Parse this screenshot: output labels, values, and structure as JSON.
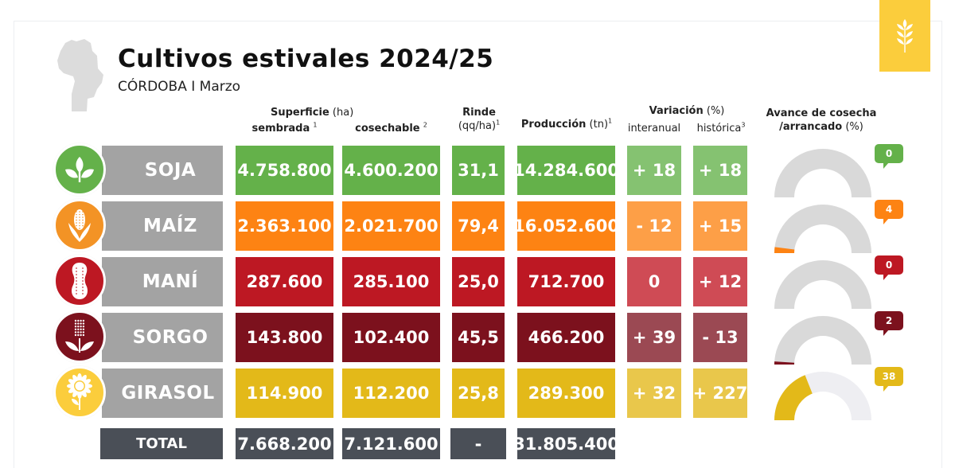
{
  "header": {
    "title": "Cultivos estivales 2024/25",
    "subtitle": "CÓRDOBA I Marzo",
    "badge_icon": "wheat-icon",
    "map_icon": "cordoba-map-icon"
  },
  "columns": {
    "superficie": "Superficie",
    "superficie_unit": "(ha)",
    "sembrada": "sembrada",
    "sembrada_note": "1",
    "cosechable": "cosechable",
    "cosechable_note": "2",
    "rinde": "Rinde",
    "rinde_unit": "(qq/ha)",
    "rinde_note": "1",
    "produccion": "Producción",
    "produccion_unit": "(tn)",
    "produccion_note": "1",
    "variacion": "Variación",
    "variacion_unit": "(%)",
    "interanual": "interanual",
    "historica": "histórica",
    "historica_note": "3",
    "avance_line1": "Avance de cosecha",
    "avance_line2": "/arrancado",
    "avance_unit": "(%)"
  },
  "crops": [
    {
      "name": "SOJA",
      "icon": "soybean-plant-icon",
      "sembrada": "4.758.800",
      "cosechable": "4.600.200",
      "rinde": "31,1",
      "produccion": "14.284.600",
      "interanual": "+ 18",
      "historica": "+ 18",
      "avance": "0",
      "avance_pct": 0,
      "color": "#64b14a",
      "var_color": "#85c271",
      "icon_color": "#64b14a"
    },
    {
      "name": "MAÍZ",
      "icon": "corn-icon",
      "sembrada": "2.363.100",
      "cosechable": "2.021.700",
      "rinde": "79,4",
      "produccion": "16.052.600",
      "interanual": "- 12",
      "historica": "+ 15",
      "avance": "4",
      "avance_pct": 4,
      "color": "#fd8313",
      "var_color": "#fd9f47",
      "icon_color": "#f39325"
    },
    {
      "name": "MANÍ",
      "icon": "peanut-icon",
      "sembrada": "287.600",
      "cosechable": "285.100",
      "rinde": "25,0",
      "produccion": "712.700",
      "interanual": "0",
      "historica": "+ 12",
      "avance": "0",
      "avance_pct": 0,
      "color": "#bd1823",
      "var_color": "#cf4b55",
      "icon_color": "#bd1823"
    },
    {
      "name": "SORGO",
      "icon": "sorghum-icon",
      "sembrada": "143.800",
      "cosechable": "102.400",
      "rinde": "45,5",
      "produccion": "466.200",
      "interanual": "+ 39",
      "historica": "- 13",
      "avance": "2",
      "avance_pct": 2,
      "color": "#7c111d",
      "var_color": "#9b4953",
      "icon_color": "#7c111d"
    },
    {
      "name": "GIRASOL",
      "icon": "sunflower-icon",
      "sembrada": "114.900",
      "cosechable": "112.200",
      "rinde": "25,8",
      "produccion": "289.300",
      "interanual": "+ 32",
      "historica": "+ 227",
      "avance": "38",
      "avance_pct": 38,
      "color": "#e3b919",
      "var_color": "#e9c74b",
      "icon_color": "#fbcd3c"
    }
  ],
  "total": {
    "label": "TOTAL",
    "sembrada": "7.668.200",
    "cosechable": "7.121.600",
    "rinde": "-",
    "produccion": "31.805.400"
  }
}
